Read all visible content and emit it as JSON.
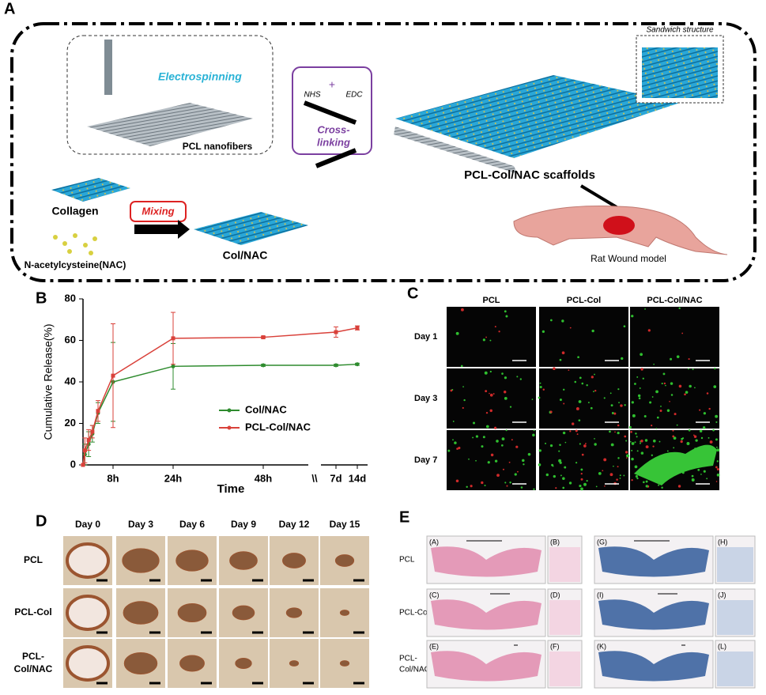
{
  "panel_a": {
    "label": "A",
    "electrospinning": "Electrospinning",
    "pcl_nanofibers": "PCL nanofibers",
    "nhs": "NHS",
    "plus": "+",
    "edc": "EDC",
    "crosslinking": [
      "Cross-",
      "linking"
    ],
    "scaffolds": "PCL-Col/NAC scaffolds",
    "sandwich": "Sandwich structure",
    "collagen": "Collagen",
    "mixing": "Mixing",
    "nac": "N-acetylcysteine(NAC)",
    "col_nac": "Col/NAC",
    "rat": "Rat Wound model"
  },
  "chart_data": {
    "type": "line",
    "panel_label": "B",
    "y_label": "Cumulative Release(%)",
    "x_label": "Time",
    "x": [
      0,
      0.5,
      1.5,
      2.5,
      4,
      8,
      24,
      48,
      168,
      336
    ],
    "series": [
      {
        "name": "Col/NAC",
        "color": "#2e8b2e",
        "values": [
          0,
          5,
          10,
          15,
          25,
          40,
          47.5,
          48,
          48,
          48.5
        ],
        "errors": [
          0,
          5,
          6,
          4,
          5,
          19,
          11,
          0.5,
          0.5,
          0.5
        ]
      },
      {
        "name": "PCL-Col/NAC",
        "color": "#d9413a",
        "values": [
          0,
          7,
          12,
          16,
          26,
          43,
          61,
          61.5,
          64,
          66
        ],
        "errors": [
          0,
          6,
          5,
          3,
          5,
          25,
          12.5,
          0.5,
          2.5,
          1
        ]
      }
    ],
    "xlim": [
      0,
      336
    ],
    "x_break": [
      48,
      168
    ],
    "x_break_label": "\\\\",
    "xticks": [
      {
        "value": 8,
        "label": "8h"
      },
      {
        "value": 24,
        "label": "24h"
      },
      {
        "value": 48,
        "label": "48h"
      },
      {
        "value": 168,
        "label": "7d"
      },
      {
        "value": 336,
        "label": "14d"
      }
    ],
    "ylim": [
      0,
      80
    ],
    "yticks": [
      0,
      20,
      40,
      60,
      80
    ],
    "grid": false,
    "legend_position": "center-right"
  },
  "panel_c": {
    "label": "C",
    "columns": [
      "PCL",
      "PCL-Col",
      "PCL-Col/NAC"
    ],
    "rows": [
      "Day 1",
      "Day 3",
      "Day 7"
    ]
  },
  "panel_d": {
    "label": "D",
    "columns": [
      "Day 0",
      "Day 3",
      "Day 6",
      "Day 9",
      "Day 12",
      "Day 15"
    ],
    "rows": [
      [
        "PCL"
      ],
      [
        "PCL-Col"
      ],
      [
        "PCL-",
        "Col/NAC"
      ]
    ]
  },
  "panel_e": {
    "label": "E",
    "rows": [
      [
        "PCL"
      ],
      [
        "PCL-Col"
      ],
      [
        "PCL-",
        "Col/NAC"
      ]
    ],
    "image_labels": [
      "(A)",
      "(B)",
      "(C)",
      "(D)",
      "(E)",
      "(F)",
      "(G)",
      "(H)",
      "(I)",
      "(J)",
      "(K)",
      "(L)"
    ]
  }
}
